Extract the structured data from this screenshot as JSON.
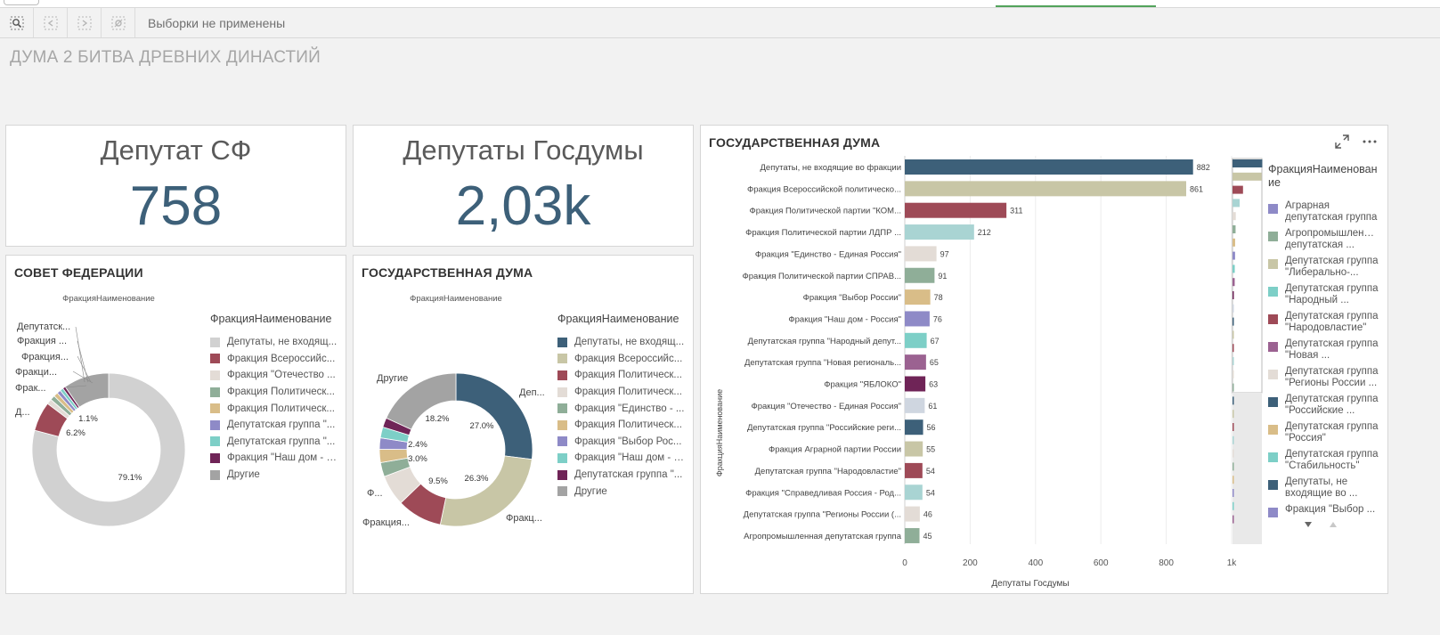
{
  "toolbar": {
    "selections_text": "Выборки не применены",
    "icons": [
      "smart-search-icon",
      "step-back-icon",
      "step-forward-icon",
      "clear-selections-icon"
    ]
  },
  "app": {
    "title": "ДУМА 2 БИТВА ДРЕВНИХ ДИНАСТИЙ"
  },
  "kpi_sf": {
    "label": "Депутат СФ",
    "value": "758"
  },
  "kpi_gd": {
    "label": "Депутаты Госдумы",
    "value": "2,03k"
  },
  "pie_sf": {
    "title": "СОВЕТ ФЕДЕРАЦИИ",
    "dimension_label": "ФракцияНаименование",
    "legend_title": "ФракцияНаименование",
    "outside_labels": [
      "Депутатск...",
      "Фракция ...",
      "Фракция...",
      "Фракци...",
      "Фрак...",
      "Д..."
    ],
    "legend": [
      {
        "label": "Депутаты, не входящ...",
        "color": "#d1d1d1"
      },
      {
        "label": "Фракция Всероссийс...",
        "color": "#9e4a57"
      },
      {
        "label": "Фракция \"Отечество ...",
        "color": "#e3dcd6"
      },
      {
        "label": "Фракция Политическ...",
        "color": "#8fae98"
      },
      {
        "label": "Фракция Политическ...",
        "color": "#d9bd88"
      },
      {
        "label": "Депутатская группа \"...",
        "color": "#8e8ac7"
      },
      {
        "label": "Депутатская группа \"...",
        "color": "#7dcfc7"
      },
      {
        "label": "Фракция \"Наш дом - Р...",
        "color": "#6f2457"
      },
      {
        "label": "Другие",
        "color": "#a3a3a3"
      }
    ]
  },
  "pie_gd": {
    "title": "ГОСУДАРСТВЕННАЯ ДУМА",
    "dimension_label": "ФракцияНаименование",
    "legend_title": "ФракцияНаименование",
    "outside_labels": [
      "Деп...",
      "Фракц...",
      "Фракция...",
      "Ф...",
      "Другие"
    ],
    "legend": [
      {
        "label": "Депутаты, не входящ...",
        "color": "#3d6079"
      },
      {
        "label": "Фракция Всероссийс...",
        "color": "#c8c6a6"
      },
      {
        "label": "Фракция Политическ...",
        "color": "#9e4a57"
      },
      {
        "label": "Фракция Политическ...",
        "color": "#e3dcd6"
      },
      {
        "label": "Фракция \"Единство - ...",
        "color": "#8fae98"
      },
      {
        "label": "Фракция Политическ...",
        "color": "#d9bd88"
      },
      {
        "label": "Фракция \"Выбор Рос...",
        "color": "#8e8ac7"
      },
      {
        "label": "Фракция \"Наш дом - Р...",
        "color": "#7dcfc7"
      },
      {
        "label": "Депутатская группа \"...",
        "color": "#6f2457"
      },
      {
        "label": "Другие",
        "color": "#a3a3a3"
      }
    ]
  },
  "bar_gd": {
    "title": "ГОСУДАРСТВЕННАЯ ДУМА",
    "legend_title": "ФракцияНаименование",
    "legend": [
      {
        "label": "Аграрная депутатская группа",
        "color": "#8e8ac7"
      },
      {
        "label": "Агропромышленная депутатская ...",
        "color": "#8fae98"
      },
      {
        "label": "Депутатская группа \"Либерально-...",
        "color": "#c8c6a6"
      },
      {
        "label": "Депутатская группа \"Народный ...",
        "color": "#7dcfc7"
      },
      {
        "label": "Депутатская группа \"Народовластие\"",
        "color": "#9e4a57"
      },
      {
        "label": "Депутатская группа \"Новая ...",
        "color": "#9b6291"
      },
      {
        "label": "Депутатская группа \"Регионы России ...",
        "color": "#e3dcd6"
      },
      {
        "label": "Депутатская группа \"Российские ...",
        "color": "#3d6079"
      },
      {
        "label": "Депутатская группа \"Россия\"",
        "color": "#d9bd88"
      },
      {
        "label": "Депутатская группа \"Стабильность\"",
        "color": "#7dcfc7"
      },
      {
        "label": "Депутаты, не входящие во ...",
        "color": "#3d6079"
      },
      {
        "label": "Фракция \"Выбор ...",
        "color": "#8e8ac7"
      }
    ]
  },
  "chart_data": [
    {
      "type": "pie",
      "title": "СОВЕТ ФЕДЕРАЦИИ",
      "dimension": "ФракцияНаименование",
      "slices": [
        {
          "label": "Депутаты, не входящ...",
          "value": 79.1,
          "value_label": "79.1%"
        },
        {
          "label": "Фракция Всероссийс...",
          "value": 6.2,
          "value_label": "6.2%"
        },
        {
          "label": "Фракция \"Отечество ...",
          "value": 1.1,
          "value_label": "1.1%"
        },
        {
          "label": "Фракция Политическ...",
          "value": 1.0,
          "value_label": ""
        },
        {
          "label": "Фракция Политическ...",
          "value": 0.9,
          "value_label": ""
        },
        {
          "label": "Депутатская группа \"...",
          "value": 0.8,
          "value_label": ""
        },
        {
          "label": "Депутатская группа \"...",
          "value": 0.7,
          "value_label": ""
        },
        {
          "label": "Фракция \"Наш дом - Р...",
          "value": 0.6,
          "value_label": ""
        },
        {
          "label": "Другие",
          "value": 9.6,
          "value_label": ""
        }
      ]
    },
    {
      "type": "pie",
      "title": "ГОСУДАРСТВЕННАЯ ДУМА",
      "dimension": "ФракцияНаименование",
      "slices": [
        {
          "label": "Депутаты, не входящ...",
          "value": 27.0,
          "value_label": "27.0%"
        },
        {
          "label": "Фракция Всероссийс...",
          "value": 26.3,
          "value_label": "26.3%"
        },
        {
          "label": "Фракция Политическ...",
          "value": 9.5,
          "value_label": "9.5%"
        },
        {
          "label": "Фракция Политическ...",
          "value": 6.5,
          "value_label": ""
        },
        {
          "label": "Фракция \"Единство - ...",
          "value": 3.0,
          "value_label": "3.0%"
        },
        {
          "label": "Фракция Политическ...",
          "value": 2.8,
          "value_label": ""
        },
        {
          "label": "Фракция \"Выбор Рос...",
          "value": 2.4,
          "value_label": "2.4%"
        },
        {
          "label": "Фракция \"Наш дом - Р...",
          "value": 2.3,
          "value_label": ""
        },
        {
          "label": "Депутатская группа \"...",
          "value": 2.0,
          "value_label": ""
        },
        {
          "label": "Другие",
          "value": 18.2,
          "value_label": "18.2%"
        }
      ]
    },
    {
      "type": "bar",
      "orientation": "horizontal",
      "title": "ГОСУДАРСТВЕННАЯ ДУМА",
      "xlabel": "Депутаты Госдумы",
      "ylabel": "ФракцияНаименование",
      "xlim": [
        0,
        1000
      ],
      "xticks": [
        "0",
        "200",
        "400",
        "600",
        "800",
        "1k"
      ],
      "grid": true,
      "categories": [
        "Депутаты, не входящие во фракции",
        "Фракция Всероссийской политическо...",
        "Фракция Политической партии \"КОМ...",
        "Фракция Политической партии ЛДПР ...",
        "Фракция \"Единство - Единая Россия\"",
        "Фракция Политической партии СПРАВ...",
        "Фракция \"Выбор России\"",
        "Фракция \"Наш дом - Россия\"",
        "Депутатская группа \"Народный депут...",
        "Депутатская группа \"Новая региональ...",
        "Фракция \"ЯБЛОКО\"",
        "Фракция \"Отечество - Единая Россия\"",
        "Депутатская группа \"Российские реги...",
        "Фракция Аграрной партии России",
        "Депутатская группа \"Народовластие\"",
        "Фракция \"Справедливая Россия - Род...",
        "Депутатская группа \"Регионы России (...",
        "Агропромышленная депутатская группа"
      ],
      "values": [
        882,
        861,
        311,
        212,
        97,
        91,
        78,
        76,
        67,
        65,
        63,
        61,
        56,
        55,
        54,
        54,
        46,
        45
      ],
      "colors": [
        "#3d6079",
        "#c8c6a6",
        "#9e4a57",
        "#a9d4d3",
        "#e3dcd6",
        "#8fae98",
        "#d9bd88",
        "#8e8ac7",
        "#7dcfc7",
        "#9b6291",
        "#6f2457",
        "#cfd6e0",
        "#3d6079",
        "#c8c6a6",
        "#9e4a57",
        "#a9d4d3",
        "#e3dcd6",
        "#8fae98"
      ]
    }
  ]
}
